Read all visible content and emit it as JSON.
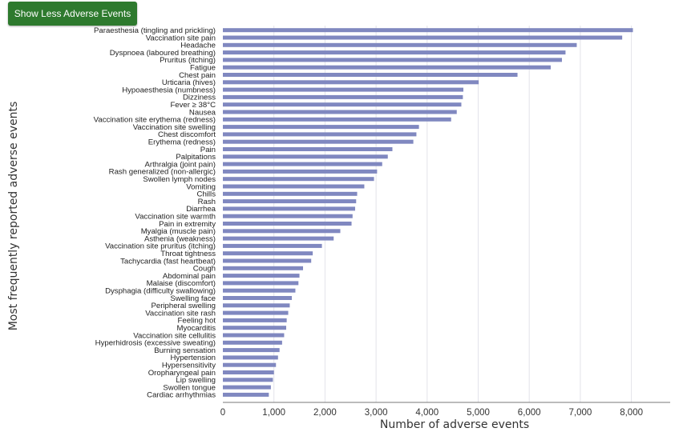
{
  "button": {
    "label": "Show Less Adverse Events"
  },
  "colors": {
    "bar": "#8088c0",
    "grid": "#e3e3ea",
    "axis": "#777777",
    "button": "#2e7a2e"
  },
  "chart_data": {
    "type": "bar",
    "orientation": "horizontal",
    "title": "",
    "xlabel": "Number of adverse events",
    "ylabel": "Most frequently reported adverse events",
    "xlim": [
      0,
      8500
    ],
    "xticks": [
      0,
      1000,
      2000,
      3000,
      4000,
      5000,
      6000,
      7000,
      8000
    ],
    "xtick_labels": [
      "0",
      "1,000",
      "2,000",
      "3,000",
      "4,000",
      "5,000",
      "6,000",
      "7,000",
      "8,000"
    ],
    "grid": "vertical",
    "categories": [
      "Paraesthesia (tingling and prickling)",
      "Vaccination site pain",
      "Headache",
      "Dyspnoea (laboured breathing)",
      "Pruritus (itching)",
      "Fatigue",
      "Chest pain",
      "Urticaria (hives)",
      "Hypoaesthesia (numbness)",
      "Dizziness",
      "Fever ≥ 38°C",
      "Nausea",
      "Vaccination site erythema (redness)",
      "Vaccination site swelling",
      "Chest discomfort",
      "Erythema (redness)",
      "Pain",
      "Palpitations",
      "Arthralgia (joint pain)",
      "Rash generalized (non-allergic)",
      "Swollen lymph nodes",
      "Vomiting",
      "Chills",
      "Rash",
      "Diarrhea",
      "Vaccination site warmth",
      "Pain in extremity",
      "Myalgia (muscle pain)",
      "Asthenia (weakness)",
      "Vaccination site pruritus (itching)",
      "Throat tightness",
      "Tachycardia (fast heartbeat)",
      "Cough",
      "Abdominal pain",
      "Malaise (discomfort)",
      "Dysphagia (difficulty swallowing)",
      "Swelling face",
      "Peripheral swelling",
      "Vaccination site rash",
      "Feeling hot",
      "Myocarditis",
      "Vaccination site cellulitis",
      "Hyperhidrosis (excessive sweating)",
      "Burning sensation",
      "Hypertension",
      "Hypersensitivity",
      "Oropharyngeal pain",
      "Lip swelling",
      "Swollen tongue",
      "Cardiac arrhythmias"
    ],
    "values": [
      8030,
      7820,
      6930,
      6710,
      6640,
      6420,
      5770,
      5010,
      4710,
      4700,
      4670,
      4580,
      4470,
      3840,
      3790,
      3730,
      3320,
      3230,
      3120,
      3020,
      2960,
      2770,
      2630,
      2610,
      2590,
      2540,
      2520,
      2300,
      2170,
      1940,
      1760,
      1730,
      1570,
      1500,
      1480,
      1420,
      1350,
      1310,
      1280,
      1250,
      1240,
      1200,
      1160,
      1110,
      1080,
      1040,
      1000,
      980,
      940,
      900
    ]
  }
}
